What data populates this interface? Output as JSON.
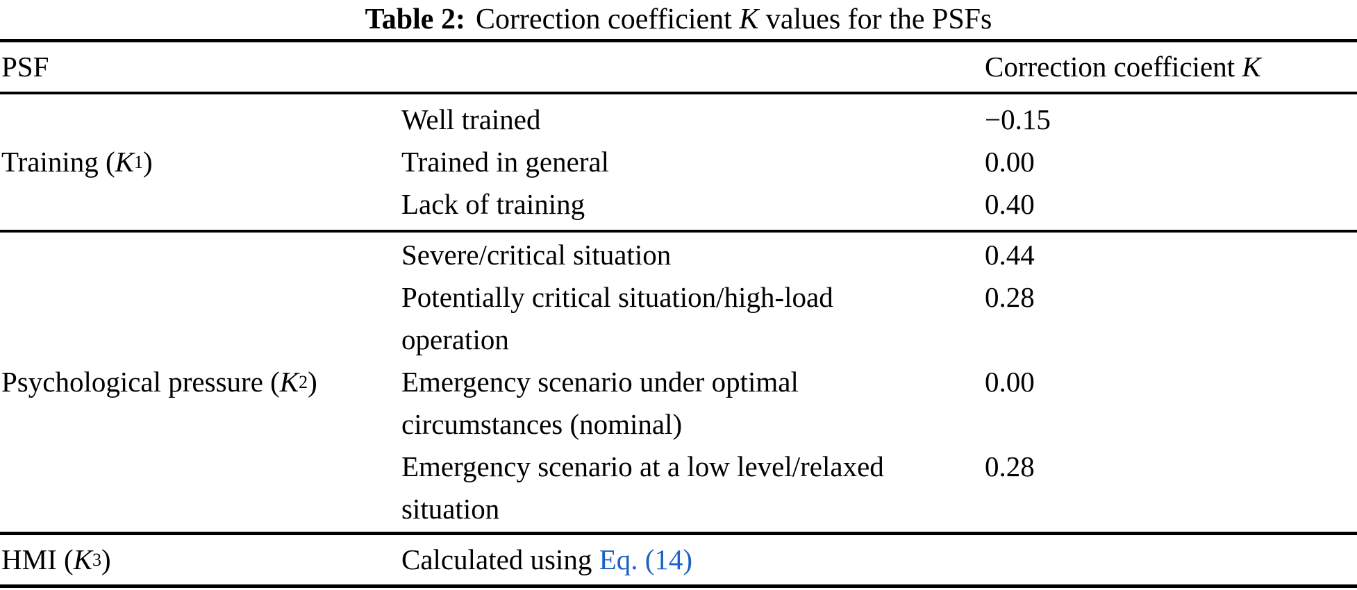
{
  "caption": {
    "label": "Table 2:",
    "text_pre_k": "Correction coefficient ",
    "k": "K",
    "text_post_k": " values for the PSFs"
  },
  "header": {
    "psf": "PSF",
    "value_pre_k": "Correction coefficient ",
    "value_k": "K"
  },
  "groups": [
    {
      "label": {
        "pre": "Training (",
        "k": "K",
        "sub": "1",
        "post": ")"
      },
      "rows": [
        {
          "lines": [
            "Well trained"
          ],
          "value": "−0.15"
        },
        {
          "lines": [
            "Trained in general"
          ],
          "value": "0.00"
        },
        {
          "lines": [
            "Lack of training"
          ],
          "value": "0.40"
        }
      ]
    },
    {
      "label": {
        "pre": "Psychological pressure (",
        "k": "K",
        "sub": "2",
        "post": ")"
      },
      "rows": [
        {
          "lines": [
            "Severe/critical situation"
          ],
          "value": "0.44"
        },
        {
          "lines": [
            "Potentially critical situation/high-load",
            "operation"
          ],
          "value": "0.28"
        },
        {
          "lines": [
            "Emergency scenario under optimal",
            "circumstances (nominal)"
          ],
          "value": "0.00"
        },
        {
          "lines": [
            "Emergency scenario at a low level/relaxed",
            "situation"
          ],
          "value": "0.28"
        }
      ]
    },
    {
      "label": {
        "pre": "HMI (",
        "k": "K",
        "sub": "3",
        "post": ")"
      },
      "rows": [
        {
          "text_pre_link": "Calculated using ",
          "link": "Eq. (14)",
          "value": ""
        }
      ]
    }
  ],
  "colors": {
    "text": "#000000",
    "background": "#ffffff",
    "rule": "#000000",
    "link_blue": "#1b62c2"
  }
}
